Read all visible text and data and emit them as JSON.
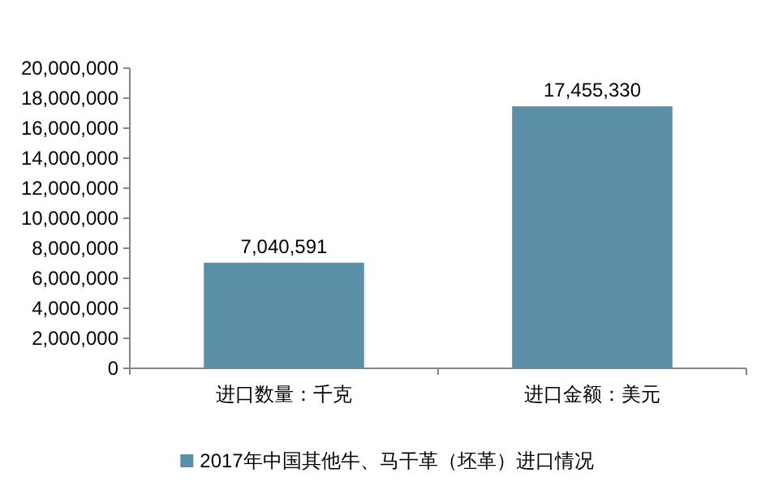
{
  "chart_data": {
    "type": "bar",
    "categories": [
      "进口数量：千克",
      "进口金额：美元"
    ],
    "series": [
      {
        "name": "2017年中国其他牛、马干革（坯革）进口情况",
        "color": "#5b8fa8",
        "values": [
          7040591,
          17455330
        ],
        "value_labels": [
          "7,040,591",
          "17,455,330"
        ]
      }
    ],
    "ylim": [
      0,
      20000000
    ],
    "yticks": [
      {
        "value": 0,
        "label": "0"
      },
      {
        "value": 2000000,
        "label": "2,000,000"
      },
      {
        "value": 4000000,
        "label": "4,000,000"
      },
      {
        "value": 6000000,
        "label": "6,000,000"
      },
      {
        "value": 8000000,
        "label": "8,000,000"
      },
      {
        "value": 10000000,
        "label": "10,000,000"
      },
      {
        "value": 12000000,
        "label": "12,000,000"
      },
      {
        "value": 14000000,
        "label": "14,000,000"
      },
      {
        "value": 16000000,
        "label": "16,000,000"
      },
      {
        "value": 18000000,
        "label": "18,000,000"
      },
      {
        "value": 20000000,
        "label": "20,000,000"
      }
    ],
    "grid": false,
    "legend": "bottom"
  }
}
